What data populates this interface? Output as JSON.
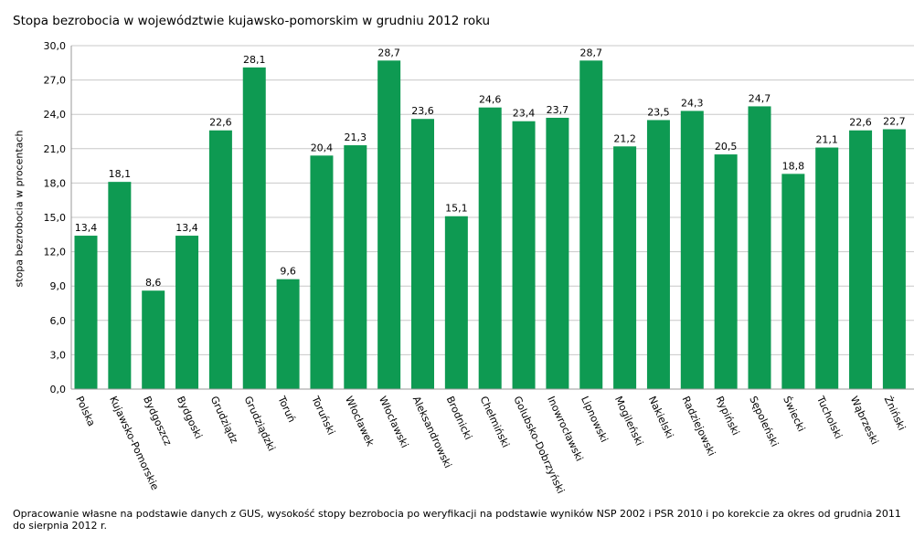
{
  "chart_data": {
    "type": "bar",
    "title": "Stopa bezrobocia w województwie kujawsko-pomorskim w grudniu 2012 roku",
    "xlabel": "",
    "ylabel": "stopa bezrobocia w procentach",
    "ylim": [
      0,
      30
    ],
    "yticks": [
      "0,0",
      "3,0",
      "6,0",
      "9,0",
      "12,0",
      "15,0",
      "18,0",
      "21,0",
      "24,0",
      "27,0",
      "30,0"
    ],
    "grid": true,
    "bar_color": "#0e9a52",
    "categories": [
      "Polska",
      "Kujawsko-Pomorskie",
      "Bydgoszcz",
      "Bydgoski",
      "Grudziądz",
      "Grudziądzki",
      "Toruń",
      "Toruński",
      "Włocławek",
      "Włocławski",
      "Aleksandrowski",
      "Brodnicki",
      "Chełmiński",
      "Golubsko-Dobrzyński",
      "Inowrocławski",
      "Lipnowski",
      "Mogileński",
      "Nakielski",
      "Radziejowski",
      "Rypiński",
      "Sępoleński",
      "Świecki",
      "Tucholski",
      "Wąbrzeski",
      "Żniński"
    ],
    "values": [
      13.4,
      18.1,
      8.6,
      13.4,
      22.6,
      28.1,
      9.6,
      20.4,
      21.3,
      28.7,
      23.6,
      15.1,
      24.6,
      23.4,
      23.7,
      28.7,
      21.2,
      23.5,
      24.3,
      20.5,
      24.7,
      18.8,
      21.1,
      22.6,
      22.7
    ],
    "labels": [
      "13,4",
      "18,1",
      "8,6",
      "13,4",
      "22,6",
      "28,1",
      "9,6",
      "20,4",
      "21,3",
      "28,7",
      "23,6",
      "15,1",
      "24,6",
      "23,4",
      "23,7",
      "28,7",
      "21,2",
      "23,5",
      "24,3",
      "20,5",
      "24,7",
      "18,8",
      "21,1",
      "22,6",
      "22,7"
    ]
  },
  "footnote": "Opracowanie własne na podstawie danych z GUS, wysokość stopy bezrobocia po weryfikacji na podstawie wyników NSP 2002 i PSR 2010 i po korekcie za okres od grudnia 2011 do sierpnia 2012 r."
}
